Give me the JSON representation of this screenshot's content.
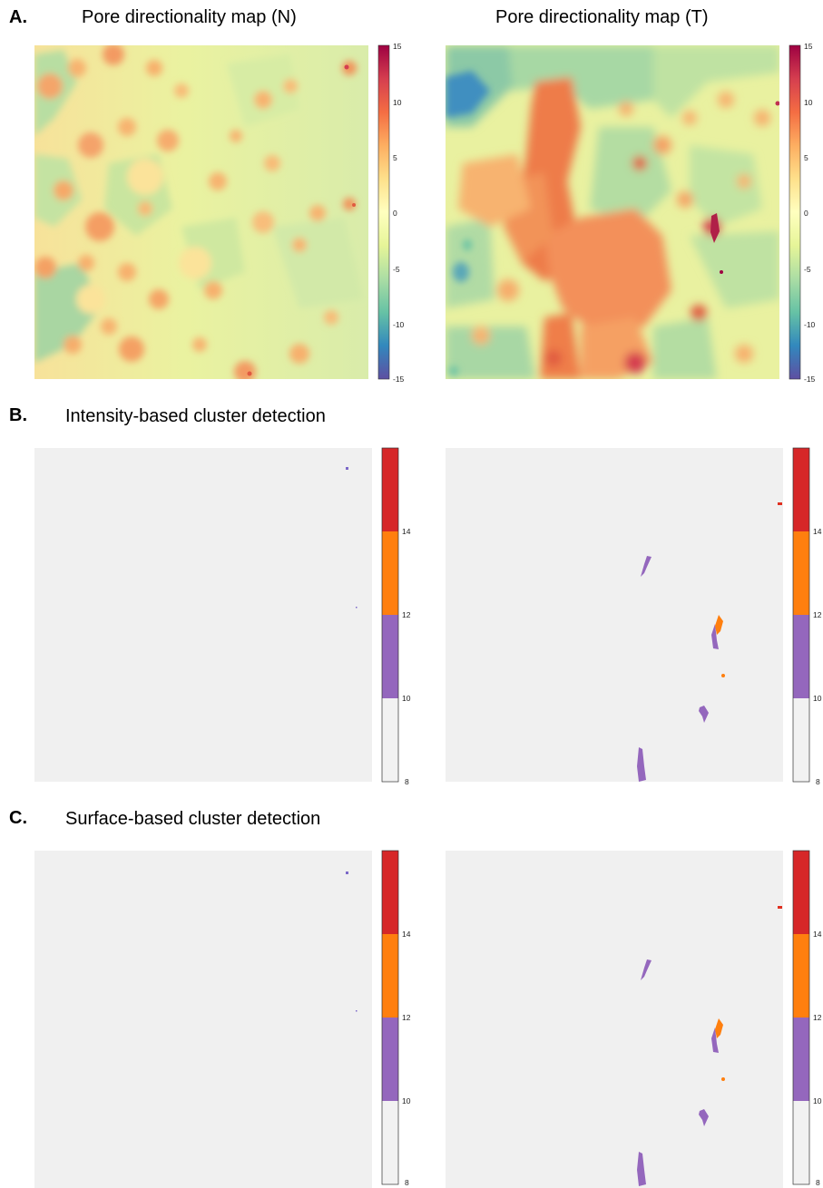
{
  "panels": {
    "A": {
      "letter": "A.",
      "title_left": "Pore directionality map (N)",
      "title_right": "Pore directionality map (T)"
    },
    "B": {
      "letter": "B.",
      "title": "Intensity-based cluster detection"
    },
    "C": {
      "letter": "C.",
      "title": "Surface-based cluster detection"
    }
  },
  "chart_data": [
    {
      "type": "heatmap",
      "panel": "A",
      "title": "Pore directionality map (N)",
      "colorbar": {
        "min": -15,
        "max": 15,
        "ticks": [
          "15",
          "10",
          "5",
          "0",
          "-5",
          "-10",
          "-15"
        ],
        "colormap": "spectral-reversed"
      },
      "dominant_range": [
        -5,
        10
      ]
    },
    {
      "type": "heatmap",
      "panel": "A",
      "title": "Pore directionality map (T)",
      "colorbar": {
        "min": -15,
        "max": 15,
        "ticks": [
          "15",
          "10",
          "5",
          "0",
          "-5",
          "-10",
          "-15"
        ],
        "colormap": "spectral-reversed"
      },
      "dominant_range": [
        -12,
        15
      ]
    },
    {
      "type": "heatmap",
      "panel": "B",
      "side": "N",
      "colorbar": {
        "min": 8,
        "max": 16,
        "ticks": [
          "14",
          "12",
          "10",
          "8"
        ],
        "bins": [
          {
            "from": 8,
            "to": 10,
            "color": "#f2f2f2"
          },
          {
            "from": 10,
            "to": 12,
            "color": "#9467bd"
          },
          {
            "from": 12,
            "to": 14,
            "color": "#ff7f0e"
          },
          {
            "from": 14,
            "to": 16,
            "color": "#d62728"
          }
        ]
      },
      "clusters": [
        {
          "level": "10-12",
          "size": "tiny"
        },
        {
          "level": "10-12",
          "size": "tiny"
        }
      ]
    },
    {
      "type": "heatmap",
      "panel": "B",
      "side": "T",
      "colorbar": {
        "min": 8,
        "max": 16,
        "ticks": [
          "14",
          "12",
          "10",
          "8"
        ],
        "bins": [
          {
            "from": 8,
            "to": 10,
            "color": "#f2f2f2"
          },
          {
            "from": 10,
            "to": 12,
            "color": "#9467bd"
          },
          {
            "from": 12,
            "to": 14,
            "color": "#ff7f0e"
          },
          {
            "from": 14,
            "to": 16,
            "color": "#d62728"
          }
        ]
      },
      "clusters": [
        {
          "level": "14-16"
        },
        {
          "level": "10-12"
        },
        {
          "level": "10-14"
        },
        {
          "level": "12-14"
        },
        {
          "level": "10-12"
        },
        {
          "level": "10-12"
        }
      ]
    },
    {
      "type": "heatmap",
      "panel": "C",
      "side": "N",
      "colorbar": {
        "min": 8,
        "max": 16,
        "ticks": [
          "14",
          "12",
          "10",
          "8"
        ],
        "bins": [
          {
            "from": 8,
            "to": 10,
            "color": "#f2f2f2"
          },
          {
            "from": 10,
            "to": 12,
            "color": "#9467bd"
          },
          {
            "from": 12,
            "to": 14,
            "color": "#ff7f0e"
          },
          {
            "from": 14,
            "to": 16,
            "color": "#d62728"
          }
        ]
      },
      "clusters": [
        {
          "level": "10-12",
          "size": "tiny"
        },
        {
          "level": "10-12",
          "size": "tiny"
        }
      ]
    },
    {
      "type": "heatmap",
      "panel": "C",
      "side": "T",
      "colorbar": {
        "min": 8,
        "max": 16,
        "ticks": [
          "14",
          "12",
          "10",
          "8"
        ],
        "bins": [
          {
            "from": 8,
            "to": 10,
            "color": "#f2f2f2"
          },
          {
            "from": 10,
            "to": 12,
            "color": "#9467bd"
          },
          {
            "from": 12,
            "to": 14,
            "color": "#ff7f0e"
          },
          {
            "from": 14,
            "to": 16,
            "color": "#d62728"
          }
        ]
      },
      "clusters": [
        {
          "level": "14-16"
        },
        {
          "level": "10-12"
        },
        {
          "level": "10-14"
        },
        {
          "level": "12-14"
        },
        {
          "level": "10-12"
        },
        {
          "level": "10-12"
        }
      ]
    }
  ]
}
